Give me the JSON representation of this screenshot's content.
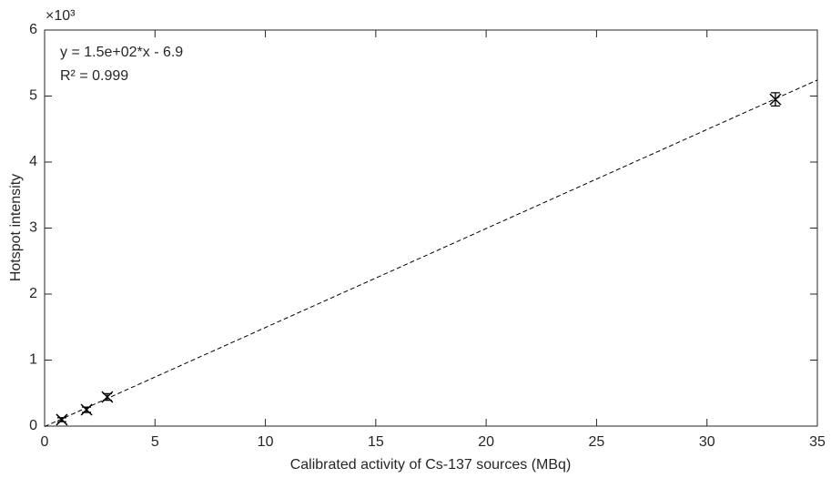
{
  "chart_data": {
    "type": "scatter",
    "x_label": "Calibrated activity of Cs-137 sources (MBq)",
    "y_label": "Hotspot intensity",
    "y_exponent_label": "×10³",
    "annotations": [
      "y = 1.5e+02*x - 6.9",
      "R² = 0.999"
    ],
    "x": [
      0.78,
      1.9,
      2.84,
      33.1
    ],
    "values": [
      97,
      248,
      441,
      4950
    ],
    "errors": [
      30,
      40,
      50,
      100
    ],
    "color": "#000000",
    "fit": {
      "slope": 150,
      "intercept": -6.9,
      "color": "#000000"
    },
    "xlim": [
      0,
      35
    ],
    "xticks": [
      0,
      5,
      10,
      15,
      20,
      25,
      30,
      35
    ],
    "ylim": [
      0,
      6000
    ],
    "yticks": [
      {
        "value": 0,
        "label": "0"
      },
      {
        "value": 1000,
        "label": "1"
      },
      {
        "value": 2000,
        "label": "2"
      },
      {
        "value": 3000,
        "label": "3"
      },
      {
        "value": 4000,
        "label": "4"
      },
      {
        "value": 5000,
        "label": "5"
      },
      {
        "value": 6000,
        "label": "6"
      }
    ],
    "grid": false
  }
}
